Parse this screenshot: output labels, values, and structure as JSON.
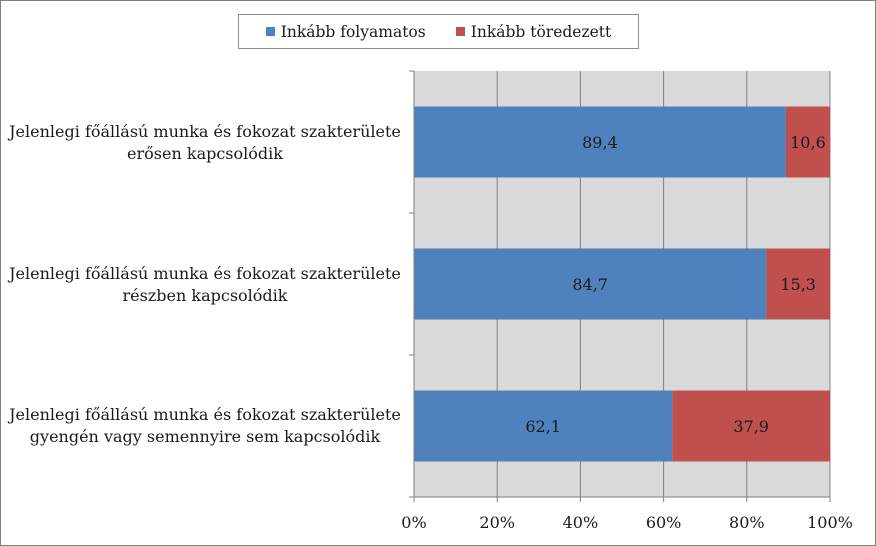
{
  "chart_data": {
    "type": "bar",
    "orientation": "horizontal",
    "stacked": "percent",
    "categories": [
      [
        "Jelenlegi főállású munka és fokozat szakterülete",
        "erősen kapcsolódik"
      ],
      [
        "Jelenlegi főállású munka és fokozat szakterülete",
        "részben kapcsolódik"
      ],
      [
        "Jelenlegi főállású munka és fokozat szakterülete",
        "gyengén vagy semennyire sem kapcsolódik"
      ]
    ],
    "series": [
      {
        "name": "Inkább folyamatos",
        "color": "#4f81bd",
        "values": [
          89.4,
          84.7,
          62.1
        ],
        "labels": [
          "89,4",
          "84,7",
          "62,1"
        ]
      },
      {
        "name": "Inkább töredezett",
        "color": "#c0504d",
        "values": [
          10.6,
          15.3,
          37.9
        ],
        "labels": [
          "10,6",
          "15,3",
          "37,9"
        ]
      }
    ],
    "xticks": [
      "0%",
      "20%",
      "40%",
      "60%",
      "80%",
      "100%"
    ],
    "xlim": [
      0,
      100
    ],
    "grid": true,
    "legend": "top",
    "plot_background": "#d9d9d9"
  }
}
